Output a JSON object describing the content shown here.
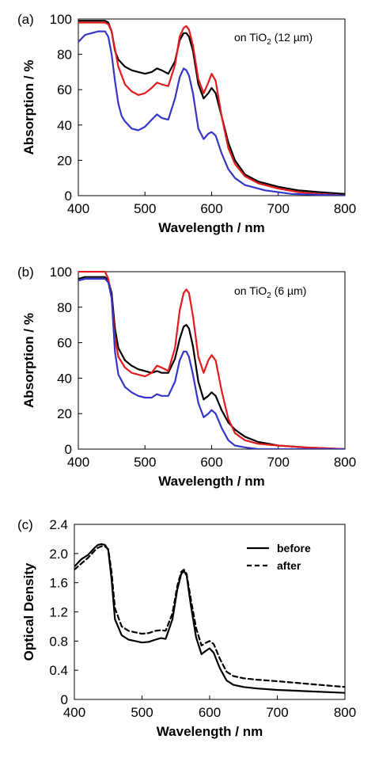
{
  "chart_data": [
    {
      "type": "line",
      "panel_label": "(a)",
      "annotation": {
        "prefix": "on TiO",
        "sub": "2",
        "suffix": " (12 µm)"
      },
      "xlabel": "Wavelength / nm",
      "ylabel": "Absorption / %",
      "xlim": [
        400,
        800
      ],
      "ylim": [
        0,
        100
      ],
      "xticks": [
        "400",
        "500",
        "600",
        "700",
        "800"
      ],
      "yticks": [
        "0",
        "20",
        "40",
        "60",
        "80",
        "100"
      ],
      "grid": false,
      "series": [
        {
          "color": "#000000",
          "dashed": false,
          "x": [
            400,
            440,
            445,
            450,
            455,
            460,
            470,
            480,
            490,
            500,
            510,
            518,
            525,
            535,
            545,
            552,
            558,
            562,
            566,
            572,
            580,
            588,
            595,
            600,
            606,
            615,
            625,
            635,
            650,
            670,
            700,
            730,
            760,
            800
          ],
          "y": [
            99,
            99,
            98,
            93,
            82,
            77,
            73,
            71,
            70,
            69,
            70,
            72,
            71,
            69,
            76,
            88,
            92,
            92,
            90,
            82,
            63,
            55,
            58,
            61,
            58,
            45,
            30,
            20,
            12,
            8,
            5,
            3,
            2,
            1
          ]
        },
        {
          "color": "#e41a1c",
          "dashed": false,
          "x": [
            400,
            440,
            445,
            450,
            455,
            460,
            470,
            480,
            490,
            500,
            510,
            518,
            525,
            535,
            545,
            552,
            558,
            562,
            566,
            572,
            580,
            588,
            595,
            600,
            606,
            615,
            625,
            635,
            650,
            670,
            700,
            730,
            760,
            800
          ],
          "y": [
            98,
            98,
            97,
            93,
            83,
            73,
            63,
            59,
            57,
            58,
            61,
            64,
            63,
            62,
            74,
            90,
            95,
            96,
            94,
            85,
            66,
            58,
            64,
            69,
            65,
            45,
            27,
            18,
            11,
            7,
            4,
            2,
            1,
            0
          ]
        },
        {
          "color": "#3535c8",
          "dashed": false,
          "x": [
            400,
            410,
            420,
            430,
            440,
            445,
            450,
            455,
            460,
            465,
            470,
            480,
            490,
            500,
            510,
            518,
            525,
            535,
            545,
            552,
            558,
            562,
            566,
            572,
            580,
            588,
            595,
            600,
            606,
            615,
            625,
            635,
            650,
            660,
            680,
            720,
            800
          ],
          "y": [
            87,
            91,
            92,
            93,
            93,
            90,
            80,
            65,
            52,
            45,
            42,
            38,
            37,
            39,
            43,
            46,
            44,
            43,
            55,
            67,
            72,
            71,
            68,
            58,
            38,
            32,
            35,
            36,
            34,
            24,
            15,
            10,
            6,
            5,
            3,
            1,
            0
          ]
        }
      ]
    },
    {
      "type": "line",
      "panel_label": "(b)",
      "annotation": {
        "prefix": "on TiO",
        "sub": "2",
        "suffix": " (6 µm)"
      },
      "xlabel": "Wavelength / nm",
      "ylabel": "Absorption / %",
      "xlim": [
        400,
        800
      ],
      "ylim": [
        0,
        100
      ],
      "xticks": [
        "400",
        "500",
        "600",
        "700",
        "800"
      ],
      "yticks": [
        "0",
        "20",
        "40",
        "60",
        "80",
        "100"
      ],
      "grid": false,
      "series": [
        {
          "color": "#000000",
          "dashed": false,
          "x": [
            400,
            410,
            440,
            445,
            450,
            455,
            460,
            470,
            480,
            490,
            500,
            510,
            518,
            525,
            535,
            545,
            552,
            558,
            562,
            566,
            572,
            580,
            588,
            595,
            600,
            606,
            615,
            625,
            635,
            650,
            670,
            700,
            740,
            800
          ],
          "y": [
            96,
            97,
            97,
            95,
            88,
            68,
            57,
            50,
            47,
            45,
            44,
            43,
            44,
            43,
            43,
            51,
            62,
            69,
            70,
            68,
            58,
            38,
            28,
            30,
            32,
            30,
            22,
            15,
            11,
            7,
            4,
            2,
            1,
            0
          ]
        },
        {
          "color": "#e41a1c",
          "dashed": false,
          "x": [
            400,
            410,
            440,
            445,
            450,
            455,
            460,
            470,
            480,
            490,
            500,
            510,
            518,
            525,
            535,
            545,
            552,
            558,
            562,
            566,
            572,
            580,
            588,
            595,
            600,
            606,
            615,
            625,
            635,
            650,
            670,
            700,
            740,
            800
          ],
          "y": [
            100,
            100,
            100,
            96,
            85,
            63,
            52,
            46,
            43,
            42,
            41,
            43,
            47,
            46,
            44,
            57,
            78,
            88,
            90,
            88,
            75,
            52,
            43,
            50,
            53,
            50,
            33,
            17,
            9,
            5,
            3,
            2,
            1,
            0
          ]
        },
        {
          "color": "#3535c8",
          "dashed": false,
          "x": [
            400,
            410,
            440,
            445,
            450,
            455,
            460,
            470,
            480,
            490,
            500,
            510,
            518,
            525,
            535,
            545,
            552,
            558,
            562,
            566,
            572,
            580,
            588,
            595,
            600,
            606,
            615,
            625,
            635,
            650,
            670,
            800
          ],
          "y": [
            95,
            96,
            96,
            94,
            85,
            55,
            42,
            35,
            32,
            30,
            29,
            29,
            31,
            30,
            30,
            38,
            50,
            55,
            55,
            52,
            42,
            26,
            18,
            20,
            22,
            20,
            12,
            5,
            2,
            1,
            0,
            0
          ]
        }
      ]
    },
    {
      "type": "line",
      "panel_label": "(c)",
      "xlabel": "Wavelength / nm",
      "ylabel": "Optical Density",
      "xlim": [
        400,
        800
      ],
      "ylim": [
        0,
        2.4
      ],
      "xticks": [
        "400",
        "500",
        "600",
        "700",
        "800"
      ],
      "yticks": [
        "0",
        "0.4",
        "0.8",
        "1.2",
        "1.6",
        "2.0",
        "2.4"
      ],
      "grid": false,
      "legend": {
        "position": "top-right"
      },
      "series": [
        {
          "name": "before",
          "color": "#000000",
          "dashed": false,
          "x": [
            400,
            405,
            410,
            415,
            420,
            425,
            430,
            435,
            440,
            445,
            450,
            455,
            460,
            470,
            480,
            490,
            500,
            510,
            520,
            528,
            535,
            545,
            552,
            558,
            562,
            566,
            572,
            580,
            588,
            595,
            600,
            606,
            615,
            625,
            635,
            650,
            670,
            700,
            750,
            800
          ],
          "y": [
            1.82,
            1.87,
            1.92,
            1.95,
            1.98,
            2.03,
            2.08,
            2.12,
            2.13,
            2.12,
            2.05,
            1.65,
            1.1,
            0.88,
            0.82,
            0.8,
            0.78,
            0.79,
            0.82,
            0.84,
            0.83,
            1.1,
            1.5,
            1.72,
            1.76,
            1.7,
            1.3,
            0.85,
            0.62,
            0.67,
            0.7,
            0.64,
            0.43,
            0.26,
            0.2,
            0.17,
            0.15,
            0.13,
            0.11,
            0.09
          ]
        },
        {
          "name": "after",
          "color": "#000000",
          "dashed": true,
          "x": [
            400,
            405,
            410,
            415,
            420,
            425,
            430,
            435,
            440,
            445,
            450,
            455,
            460,
            470,
            480,
            490,
            500,
            510,
            520,
            528,
            535,
            545,
            552,
            558,
            562,
            566,
            572,
            580,
            588,
            595,
            600,
            606,
            615,
            625,
            635,
            650,
            670,
            700,
            750,
            800
          ],
          "y": [
            1.78,
            1.82,
            1.86,
            1.9,
            1.94,
            1.99,
            2.04,
            2.08,
            2.1,
            2.1,
            2.06,
            1.75,
            1.25,
            1.0,
            0.94,
            0.92,
            0.9,
            0.91,
            0.94,
            0.95,
            0.94,
            1.18,
            1.55,
            1.75,
            1.78,
            1.72,
            1.38,
            0.98,
            0.74,
            0.78,
            0.8,
            0.76,
            0.56,
            0.38,
            0.32,
            0.29,
            0.27,
            0.25,
            0.21,
            0.17
          ]
        }
      ]
    }
  ]
}
